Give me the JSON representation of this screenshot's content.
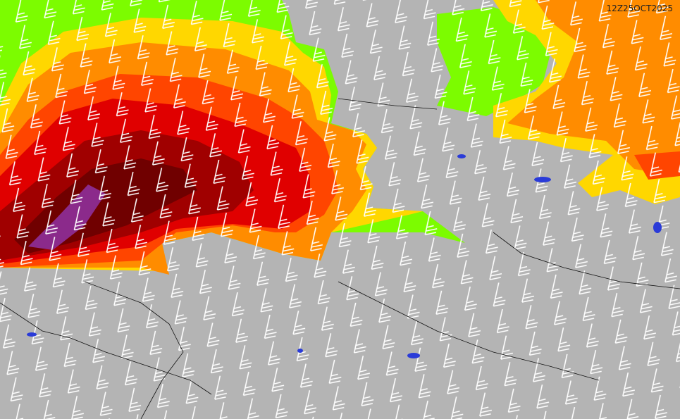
{
  "timestamp": "12Z25OCT2025"
}
